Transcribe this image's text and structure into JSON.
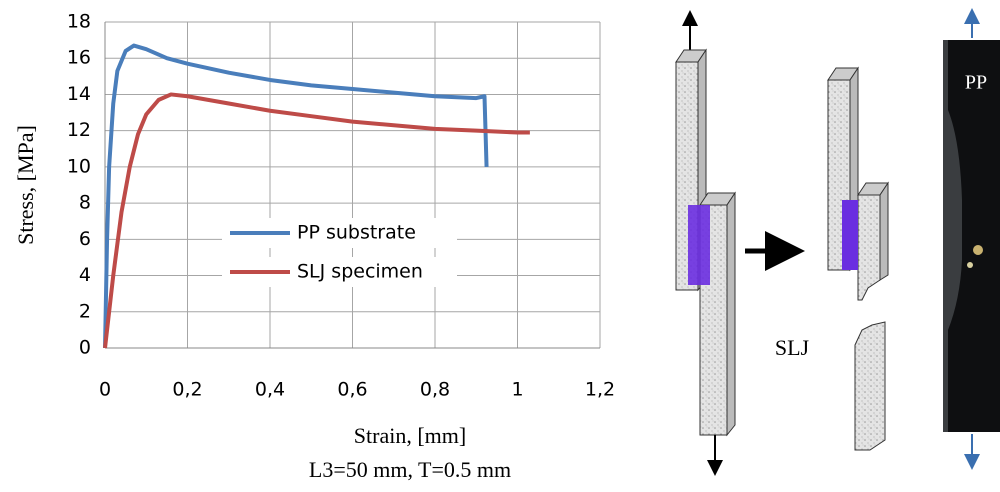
{
  "chart_data": {
    "type": "line",
    "xlabel": "Strain, [mm]",
    "ylabel": "Stress, [MPa]",
    "subtitle": "L3=50 mm, T=0.5 mm",
    "xlim": [
      0,
      1.2
    ],
    "xticks": [
      0,
      {
        "value": 0.2,
        "label": "0,2"
      },
      {
        "value": 0.4,
        "label": "0,4"
      },
      {
        "value": 0.6,
        "label": "0,6"
      },
      {
        "value": 0.8,
        "label": "0,8"
      },
      1,
      {
        "value": 1.2,
        "label": "1,2"
      }
    ],
    "ylim": [
      0,
      18
    ],
    "yticks": [
      0,
      2,
      4,
      6,
      8,
      10,
      12,
      14,
      16,
      18
    ],
    "grid": true,
    "series": [
      {
        "name": "PP substrate",
        "color": "#4a7ebb",
        "x": [
          0,
          0.005,
          0.01,
          0.02,
          0.03,
          0.05,
          0.07,
          0.1,
          0.15,
          0.2,
          0.3,
          0.4,
          0.5,
          0.6,
          0.7,
          0.8,
          0.9,
          0.92,
          0.925
        ],
        "values": [
          0,
          6,
          10,
          13.5,
          15.3,
          16.4,
          16.7,
          16.5,
          16.0,
          15.7,
          15.2,
          14.8,
          14.5,
          14.3,
          14.1,
          13.9,
          13.8,
          13.9,
          10
        ]
      },
      {
        "name": "SLJ specimen",
        "color": "#be4b48",
        "x": [
          0,
          0.01,
          0.02,
          0.04,
          0.06,
          0.08,
          0.1,
          0.13,
          0.16,
          0.2,
          0.3,
          0.4,
          0.5,
          0.6,
          0.7,
          0.8,
          0.9,
          1.0,
          1.03
        ],
        "values": [
          0,
          2,
          4,
          7.5,
          10,
          11.8,
          12.9,
          13.7,
          14.0,
          13.9,
          13.5,
          13.1,
          12.8,
          12.5,
          12.3,
          12.1,
          12.0,
          11.9,
          11.9
        ]
      }
    ]
  },
  "illustration": {
    "slj_label": "SLJ",
    "pp_label": "PP"
  }
}
